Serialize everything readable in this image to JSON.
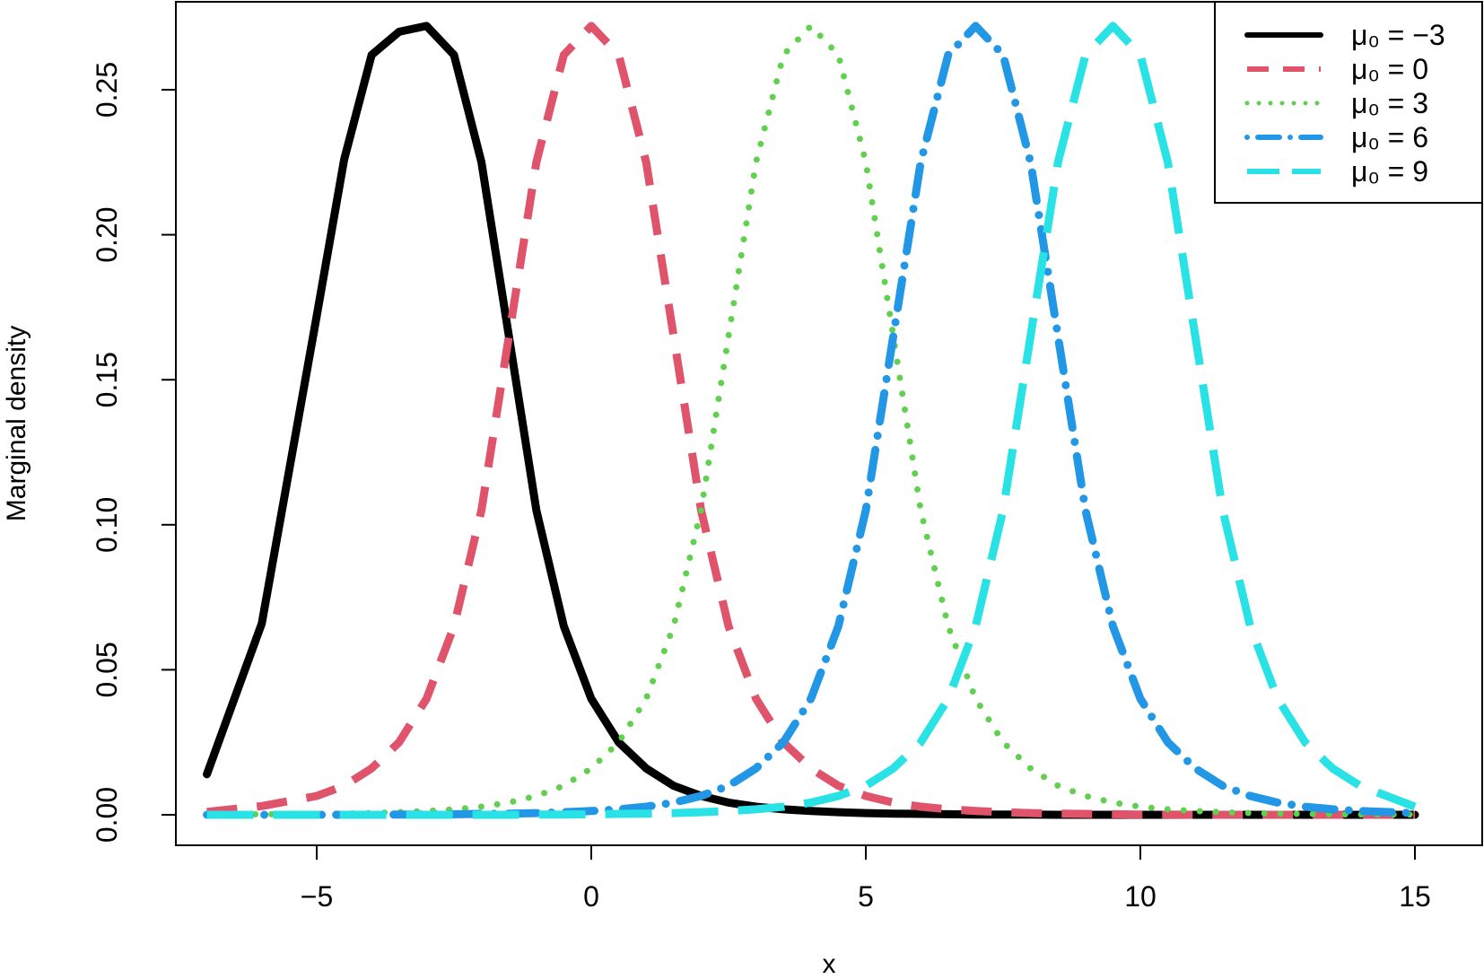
{
  "chart_data": {
    "type": "line",
    "title": "",
    "xlabel": "x",
    "ylabel": "Marginal density",
    "xlim": [
      -7,
      15
    ],
    "ylim": [
      0,
      0.27
    ],
    "x_ticks": [
      -5,
      0,
      5,
      10,
      15
    ],
    "x_tick_labels": [
      "−5",
      "0",
      "5",
      "10",
      "15"
    ],
    "y_ticks": [
      0.0,
      0.05,
      0.1,
      0.15,
      0.2,
      0.25
    ],
    "y_tick_labels": [
      "0.00",
      "0.05",
      "0.10",
      "0.15",
      "0.20",
      "0.25"
    ],
    "grid": false,
    "legend_position": "top-right",
    "x": [
      -7,
      -6,
      -5,
      -4.5,
      -4,
      -3.5,
      -3,
      -2.5,
      -2,
      -1.5,
      -1,
      -0.5,
      0,
      0.5,
      1,
      1.5,
      2,
      2.5,
      3,
      3.5,
      4,
      4.5,
      5,
      5.5,
      6,
      6.5,
      7,
      7.5,
      8,
      8.5,
      9,
      9.5,
      10,
      10.5,
      11,
      11.5,
      12,
      12.5,
      13,
      13.5,
      14,
      15
    ],
    "series": [
      {
        "name": "μ0 = −3",
        "legend_label": "μ₀ = −3",
        "color": "#000000",
        "dash": "solid",
        "values": [
          0.014,
          0.066,
          0.172,
          0.226,
          0.262,
          0.27,
          0.272,
          0.262,
          0.225,
          0.165,
          0.105,
          0.065,
          0.04,
          0.025,
          0.016,
          0.01,
          0.0065,
          0.0042,
          0.0028,
          0.0019,
          0.0013,
          0.0009,
          0.0006,
          0.0004,
          0.0003,
          0.0002,
          0.0001,
          0.0001,
          0.0001,
          0,
          0,
          0,
          0,
          0,
          0,
          0,
          0,
          0,
          0,
          0,
          0,
          0
        ]
      },
      {
        "name": "μ0 = 0",
        "legend_label": "μ₀ = 0",
        "color": "#df536b",
        "dash": "dashed",
        "values": [
          0.001,
          0.003,
          0.0065,
          0.01,
          0.016,
          0.025,
          0.04,
          0.065,
          0.105,
          0.165,
          0.225,
          0.262,
          0.272,
          0.262,
          0.225,
          0.165,
          0.105,
          0.065,
          0.04,
          0.025,
          0.016,
          0.01,
          0.0065,
          0.0042,
          0.0028,
          0.0019,
          0.0013,
          0.0009,
          0.0006,
          0.0004,
          0.0003,
          0.0002,
          0.0001,
          0.0001,
          0,
          0,
          0,
          0,
          0,
          0,
          0,
          0
        ]
      },
      {
        "name": "μ0 = 3",
        "legend_label": "μ₀ = 3",
        "color": "#61d04f",
        "dash": "dotted",
        "values": [
          0.0001,
          0.0002,
          0.0003,
          0.0004,
          0.0006,
          0.0009,
          0.0013,
          0.0019,
          0.0028,
          0.0042,
          0.0065,
          0.01,
          0.016,
          0.025,
          0.04,
          0.065,
          0.105,
          0.165,
          0.225,
          0.262,
          0.272,
          0.262,
          0.225,
          0.165,
          0.105,
          0.065,
          0.04,
          0.025,
          0.016,
          0.01,
          0.0065,
          0.0042,
          0.0028,
          0.0019,
          0.0013,
          0.0009,
          0.0006,
          0.0004,
          0.0003,
          0.0002,
          0.0001,
          0.0001
        ]
      },
      {
        "name": "μ0 = 6",
        "legend_label": "μ₀ = 6",
        "color": "#2297e6",
        "dash": "dotdash",
        "values": [
          0,
          0,
          0,
          0,
          0,
          0.0001,
          0.0001,
          0.0002,
          0.0003,
          0.0004,
          0.0006,
          0.0009,
          0.0013,
          0.0019,
          0.0028,
          0.0042,
          0.0065,
          0.01,
          0.016,
          0.025,
          0.04,
          0.065,
          0.105,
          0.165,
          0.225,
          0.262,
          0.272,
          0.262,
          0.225,
          0.165,
          0.105,
          0.065,
          0.04,
          0.025,
          0.016,
          0.01,
          0.0065,
          0.0042,
          0.0028,
          0.0019,
          0.0013,
          0.0006
        ]
      },
      {
        "name": "μ0 = 9",
        "legend_label": "μ₀ = 9",
        "color": "#28e2e5",
        "dash": "longdash",
        "values": [
          0,
          0,
          0,
          0,
          0,
          0,
          0,
          0,
          0,
          0,
          0.0001,
          0.0001,
          0.0002,
          0.0003,
          0.0004,
          0.0006,
          0.0009,
          0.0013,
          0.0019,
          0.0028,
          0.0042,
          0.0065,
          0.01,
          0.016,
          0.025,
          0.04,
          0.065,
          0.105,
          0.165,
          0.225,
          0.262,
          0.272,
          0.262,
          0.225,
          0.165,
          0.105,
          0.065,
          0.04,
          0.025,
          0.016,
          0.01,
          0.0028
        ]
      }
    ]
  }
}
